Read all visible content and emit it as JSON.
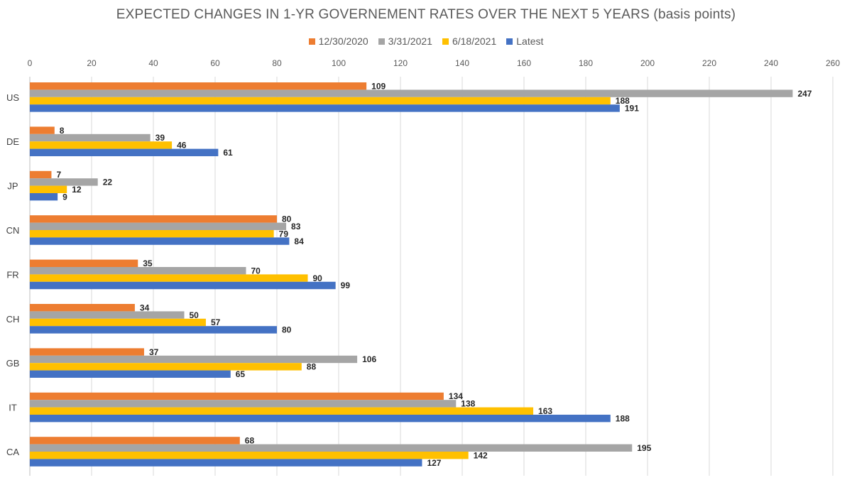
{
  "chart_data": {
    "type": "bar",
    "orientation": "horizontal",
    "title": "EXPECTED CHANGES IN 1-YR GOVERNEMENT RATES OVER THE NEXT 5 YEARS (basis points)",
    "categories": [
      "US",
      "DE",
      "JP",
      "CN",
      "FR",
      "CH",
      "GB",
      "IT",
      "CA"
    ],
    "series": [
      {
        "name": "12/30/2020",
        "color": "#ED7D31",
        "values": [
          109,
          8,
          7,
          80,
          35,
          34,
          37,
          134,
          68
        ]
      },
      {
        "name": "3/31/2021",
        "color": "#A5A5A5",
        "values": [
          247,
          39,
          22,
          83,
          70,
          50,
          106,
          138,
          195
        ]
      },
      {
        "name": "6/18/2021",
        "color": "#FFC000",
        "values": [
          188,
          46,
          12,
          79,
          90,
          57,
          88,
          163,
          142
        ]
      },
      {
        "name": "Latest",
        "color": "#4472C4",
        "values": [
          191,
          61,
          9,
          84,
          99,
          80,
          65,
          188,
          127
        ]
      }
    ],
    "xlim": [
      0,
      260
    ],
    "xticks": [
      0,
      20,
      40,
      60,
      80,
      100,
      120,
      140,
      160,
      180,
      200,
      220,
      240,
      260
    ],
    "grid": true,
    "legend_position": "top"
  }
}
